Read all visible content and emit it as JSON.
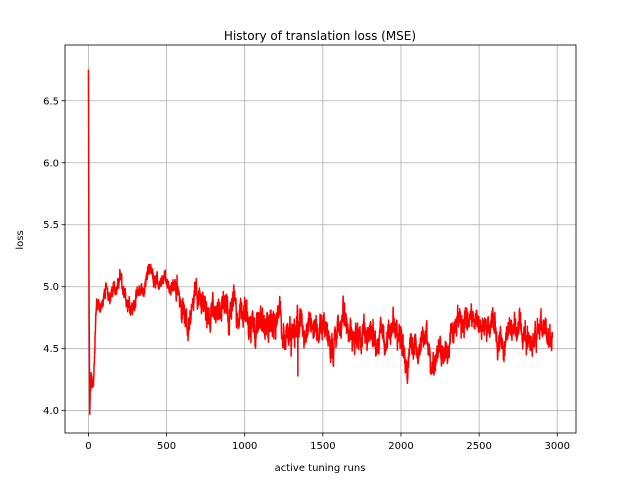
{
  "chart_data": {
    "type": "line",
    "title": "History of translation loss (MSE)",
    "xlabel": "active tuning runs",
    "ylabel": "loss",
    "xlim": [
      -150,
      3120
    ],
    "ylim": [
      3.82,
      6.95
    ],
    "xticks": [
      0,
      500,
      1000,
      1500,
      2000,
      2500,
      3000
    ],
    "xtick_labels": [
      "0",
      "500",
      "1000",
      "1500",
      "2000",
      "2500",
      "3000"
    ],
    "yticks": [
      4.0,
      4.5,
      5.0,
      5.5,
      6.0,
      6.5
    ],
    "ytick_labels": [
      "4.0",
      "4.5",
      "5.0",
      "5.5",
      "6.0",
      "6.5"
    ],
    "grid": true,
    "series": [
      {
        "name": "translation loss",
        "color": "#ff0000",
        "n_points": 2970,
        "x": [
          0,
          3,
          8,
          12,
          20,
          30,
          40,
          50,
          60,
          70,
          80,
          100,
          120,
          140,
          160,
          180,
          200,
          220,
          250,
          280,
          300,
          330,
          360,
          380,
          400,
          420,
          440,
          460,
          500,
          540,
          580,
          620,
          660,
          680,
          700,
          720,
          760,
          800,
          850,
          900,
          950,
          1000,
          1050,
          1100,
          1150,
          1200,
          1250,
          1300,
          1340,
          1360,
          1400,
          1450,
          1500,
          1550,
          1600,
          1650,
          1700,
          1750,
          1800,
          1850,
          1900,
          1950,
          2000,
          2050,
          2100,
          2150,
          2200,
          2250,
          2300,
          2350,
          2400,
          2450,
          2500,
          2550,
          2600,
          2650,
          2700,
          2750,
          2800,
          2850,
          2900,
          2960
        ],
        "y": [
          6.75,
          5.2,
          3.97,
          4.15,
          4.3,
          4.25,
          4.45,
          4.8,
          4.9,
          4.88,
          4.85,
          4.95,
          5.0,
          4.97,
          5.02,
          4.98,
          5.05,
          4.95,
          4.9,
          4.85,
          4.9,
          4.95,
          4.98,
          5.05,
          5.15,
          5.1,
          5.08,
          5.0,
          4.98,
          5.05,
          4.95,
          4.7,
          4.75,
          5.05,
          4.9,
          4.85,
          4.8,
          4.7,
          4.65,
          4.6,
          4.7,
          4.8,
          4.75,
          4.7,
          4.75,
          4.72,
          4.7,
          4.8,
          4.75,
          4.85,
          4.72,
          4.65,
          4.7,
          4.62,
          4.65,
          4.7,
          4.66,
          4.6,
          4.62,
          4.55,
          4.6,
          4.58,
          4.55,
          4.52,
          4.55,
          4.5,
          4.55,
          4.5,
          4.6,
          4.75,
          4.7,
          4.65,
          4.55,
          4.6,
          4.62,
          4.58,
          4.65,
          4.6,
          4.62,
          4.65,
          4.6,
          4.6
        ],
        "noise_amplitude": [
          0,
          0,
          0,
          0.12,
          0.12,
          0.1,
          0.1,
          0.08,
          0.07,
          0.07,
          0.07,
          0.08,
          0.08,
          0.08,
          0.08,
          0.08,
          0.08,
          0.08,
          0.08,
          0.08,
          0.08,
          0.08,
          0.08,
          0.08,
          0.08,
          0.08,
          0.08,
          0.08,
          0.08,
          0.1,
          0.12,
          0.14,
          0.14,
          0.1,
          0.12,
          0.14,
          0.14,
          0.15,
          0.16,
          0.16,
          0.16,
          0.16,
          0.15,
          0.15,
          0.15,
          0.15,
          0.15,
          0.15,
          0.15,
          0.15,
          0.15,
          0.15,
          0.15,
          0.15,
          0.15,
          0.15,
          0.15,
          0.15,
          0.15,
          0.14,
          0.14,
          0.14,
          0.14,
          0.14,
          0.14,
          0.14,
          0.14,
          0.14,
          0.14,
          0.14,
          0.14,
          0.13,
          0.13,
          0.13,
          0.13,
          0.13,
          0.13,
          0.13,
          0.13,
          0.13,
          0.13,
          0.13
        ]
      }
    ]
  }
}
